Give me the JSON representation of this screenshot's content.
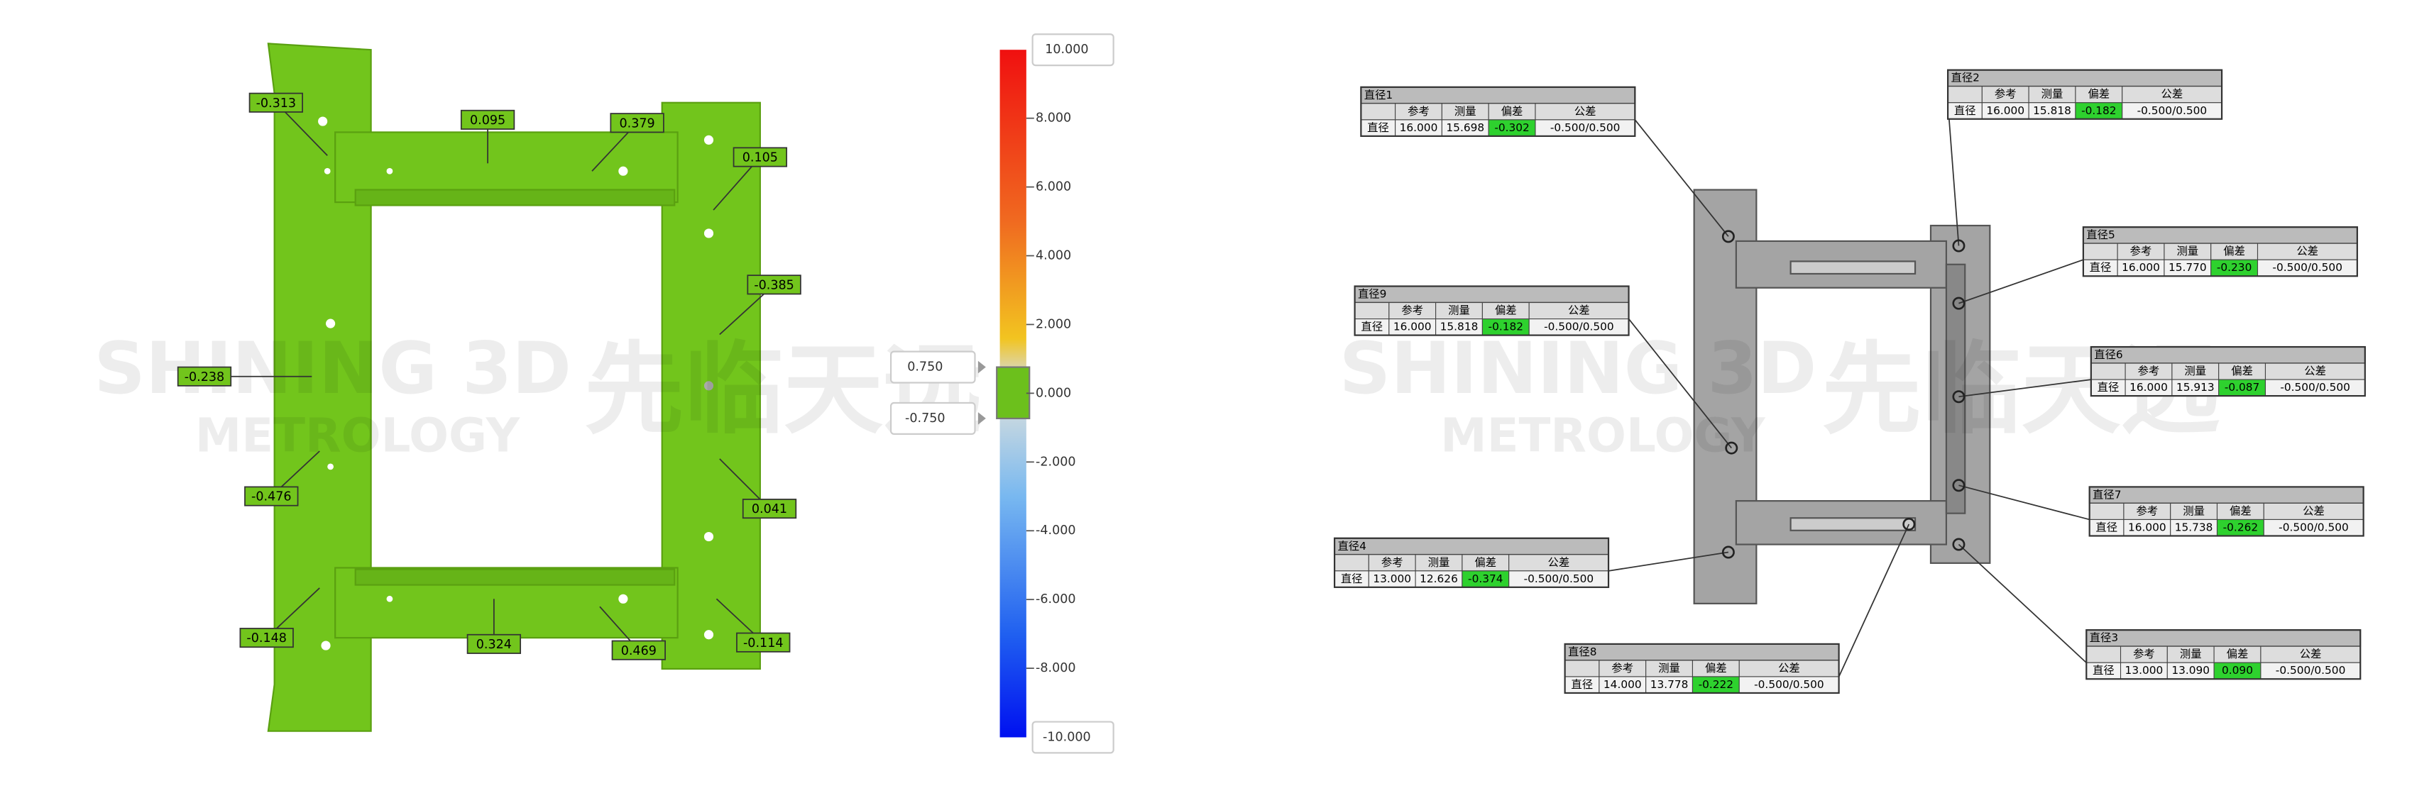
{
  "watermark": {
    "brand": "SHINING 3D",
    "sub": "METROLOGY",
    "cn": "先临天远"
  },
  "deviation_labels": [
    "-0.313",
    "0.095",
    "0.379",
    "0.105",
    "-0.385",
    "-0.238",
    "-0.476",
    "0.041",
    "-0.148",
    "0.324",
    "0.469",
    "-0.114"
  ],
  "color_scale": {
    "max": "10.000",
    "min": "-10.000",
    "upper": "0.750",
    "lower": "-0.750",
    "ticks": [
      "8.000",
      "6.000",
      "4.000",
      "2.000",
      "0.000",
      "-2.000",
      "-4.000",
      "-6.000",
      "-8.000"
    ]
  },
  "tables": {
    "columns": [
      "参考",
      "测量",
      "偏差",
      "公差"
    ],
    "row_label": "直径",
    "items": [
      {
        "title": "直径1",
        "values": [
          "16.000",
          "15.698",
          "-0.302",
          "-0.500/0.500"
        ]
      },
      {
        "title": "直径2",
        "values": [
          "16.000",
          "15.818",
          "-0.182",
          "-0.500/0.500"
        ]
      },
      {
        "title": "直径5",
        "values": [
          "16.000",
          "15.770",
          "-0.230",
          "-0.500/0.500"
        ]
      },
      {
        "title": "直径9",
        "values": [
          "16.000",
          "15.818",
          "-0.182",
          "-0.500/0.500"
        ]
      },
      {
        "title": "直径6",
        "values": [
          "16.000",
          "15.913",
          "-0.087",
          "-0.500/0.500"
        ]
      },
      {
        "title": "直径7",
        "values": [
          "16.000",
          "15.738",
          "-0.262",
          "-0.500/0.500"
        ]
      },
      {
        "title": "直径4",
        "values": [
          "13.000",
          "12.626",
          "-0.374",
          "-0.500/0.500"
        ]
      },
      {
        "title": "直径8",
        "values": [
          "14.000",
          "13.778",
          "-0.222",
          "-0.500/0.500"
        ]
      },
      {
        "title": "直径3",
        "values": [
          "13.000",
          "13.090",
          "0.090",
          "-0.500/0.500"
        ]
      }
    ]
  }
}
